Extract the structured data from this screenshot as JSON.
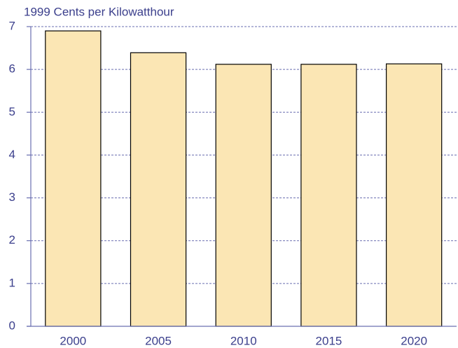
{
  "chart_data": {
    "type": "bar",
    "ylabel": "1999 Cents per Kilowatthour",
    "categories": [
      "2000",
      "2005",
      "2010",
      "2015",
      "2020"
    ],
    "values": [
      6.9,
      6.39,
      6.12,
      6.12,
      6.13
    ],
    "color": "#fbe6b4",
    "ylim": [
      0,
      7
    ],
    "yticks": [
      0,
      1,
      2,
      3,
      4,
      5,
      6,
      7
    ],
    "grid": true
  }
}
